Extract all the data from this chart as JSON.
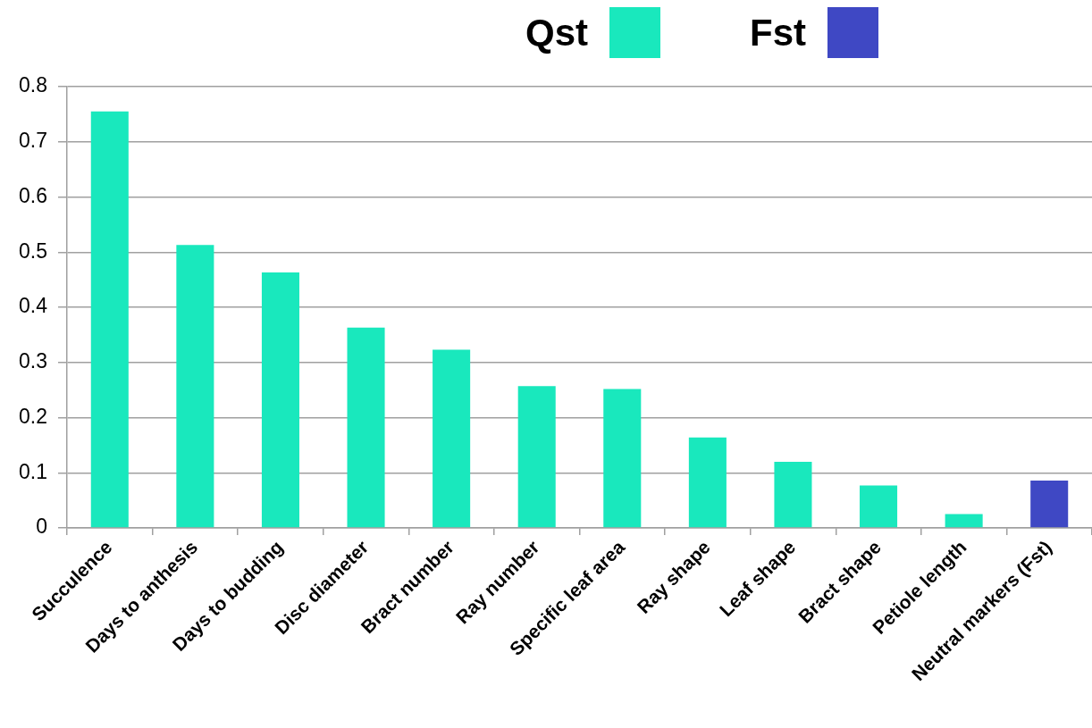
{
  "chart_data": {
    "type": "bar",
    "categories": [
      "Succulence",
      "Days to anthesis",
      "Days to budding",
      "Disc diameter",
      "Bract number",
      "Ray number",
      "Specific leaf area",
      "Ray shape",
      "Leaf shape",
      "Bract shape",
      "Petiole length",
      "Neutral markers (Fst)"
    ],
    "series": [
      {
        "name": "Qst",
        "color": "#19e8bd",
        "values": [
          0.755,
          0.513,
          0.463,
          0.363,
          0.323,
          0.257,
          0.252,
          0.164,
          0.12,
          0.077,
          0.025,
          null
        ]
      },
      {
        "name": "Fst",
        "color": "#3f48c4",
        "values": [
          null,
          null,
          null,
          null,
          null,
          null,
          null,
          null,
          null,
          null,
          null,
          0.086
        ]
      }
    ],
    "ylim": [
      0,
      0.8
    ],
    "yticks": [
      0,
      0.1,
      0.2,
      0.3,
      0.4,
      0.5,
      0.6,
      0.7,
      0.8
    ],
    "grid": "y",
    "legend": "top"
  }
}
